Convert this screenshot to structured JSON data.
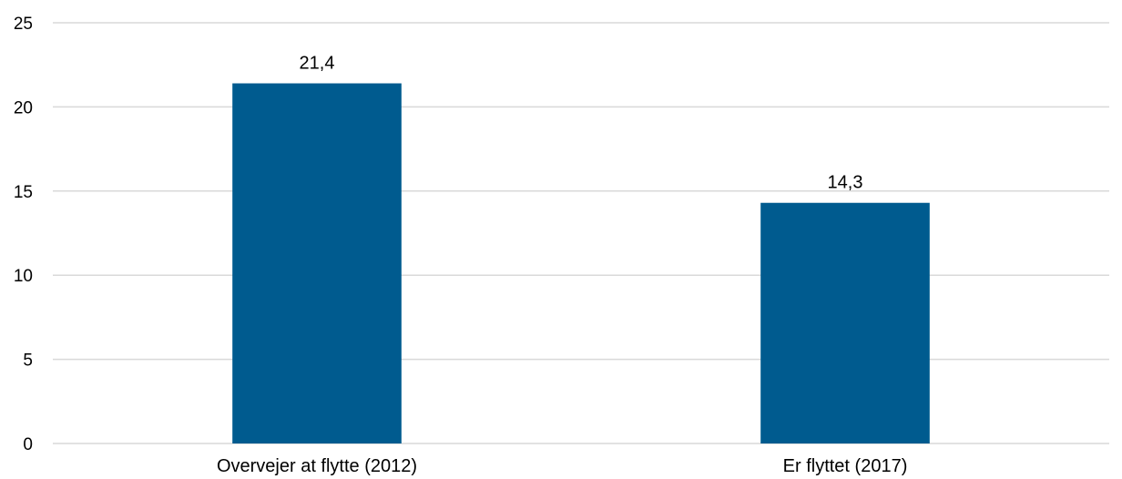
{
  "chart_data": {
    "type": "bar",
    "title": "",
    "xlabel": "",
    "ylabel": "",
    "categories": [
      "Overvejer at flytte (2012)",
      "Er flyttet (2017)"
    ],
    "values": [
      21.4,
      14.3
    ],
    "data_labels": [
      "21,4",
      "14,3"
    ],
    "ylim": [
      0,
      25
    ],
    "y_ticks": [
      0,
      5,
      10,
      15,
      20,
      25
    ],
    "y_tick_labels": [
      "0",
      "5",
      "10",
      "15",
      "20",
      "25"
    ],
    "grid": true,
    "legend": "none",
    "bar_color": "#005b8f"
  }
}
